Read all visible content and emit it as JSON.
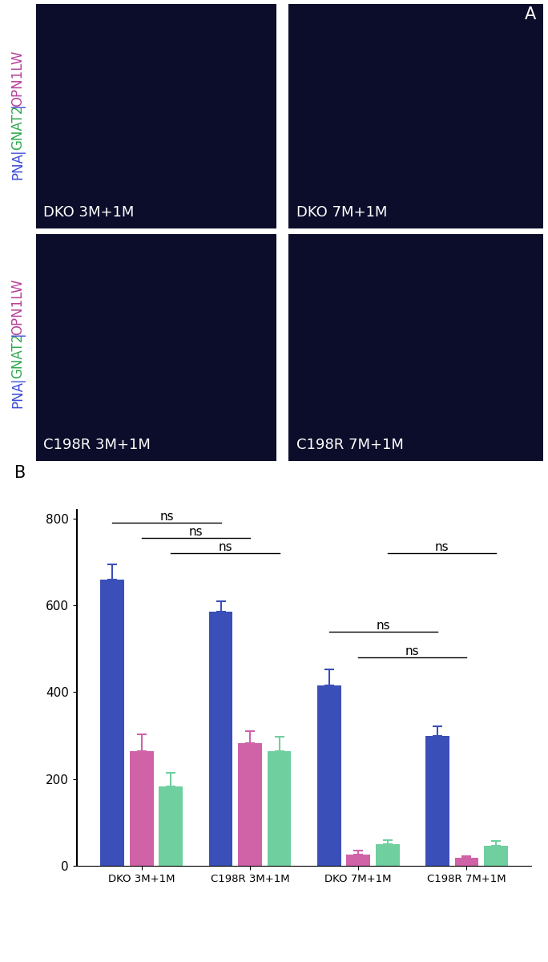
{
  "panel_labels": [
    "A",
    "B"
  ],
  "images": {
    "stain_label": [
      {
        "text": "PNA",
        "color": "#3a4bd8"
      },
      {
        "text": "|",
        "color": "#3a4bd8"
      },
      {
        "text": "GNAT2",
        "color": "#2fa84f"
      },
      {
        "text": "|",
        "color": "#3a4bd8"
      },
      {
        "text": "OPN1LW",
        "color": "#b8419a"
      }
    ],
    "titles": [
      "DKO 3M+1M",
      "DKO 7M+1M",
      "C198R 3M+1M",
      "C198R 7M+1M"
    ]
  },
  "chart_data": {
    "type": "bar",
    "categories": [
      "DKO 3M+1M",
      "C198R 3M+1M",
      "DKO 7M+1M",
      "C198R 7M+1M"
    ],
    "series": [
      {
        "color": "#3a4fb8",
        "values": [
          660,
          585,
          415,
          300
        ],
        "errors": [
          35,
          25,
          38,
          22
        ]
      },
      {
        "color": "#d062a8",
        "values": [
          265,
          283,
          25,
          18
        ],
        "errors": [
          38,
          28,
          10,
          5
        ]
      },
      {
        "color": "#6fcf9f",
        "values": [
          183,
          265,
          50,
          47
        ],
        "errors": [
          32,
          32,
          10,
          10
        ]
      }
    ],
    "ylim": [
      0,
      820
    ],
    "yticks": [
      0,
      200,
      400,
      600,
      800
    ],
    "annotations": [
      {
        "text": "ns",
        "from": [
          0,
          0
        ],
        "to": [
          1,
          0
        ],
        "y": 790
      },
      {
        "text": "ns",
        "from": [
          0,
          1
        ],
        "to": [
          1,
          1
        ],
        "y": 755
      },
      {
        "text": "ns",
        "from": [
          0,
          2
        ],
        "to": [
          1,
          2
        ],
        "y": 720
      },
      {
        "text": "ns",
        "from": [
          2,
          0
        ],
        "to": [
          3,
          0
        ],
        "y": 540
      },
      {
        "text": "ns",
        "from": [
          2,
          1
        ],
        "to": [
          3,
          1
        ],
        "y": 480
      },
      {
        "text": "ns",
        "from": [
          2,
          2
        ],
        "to": [
          3,
          2
        ],
        "y": 720
      }
    ]
  }
}
